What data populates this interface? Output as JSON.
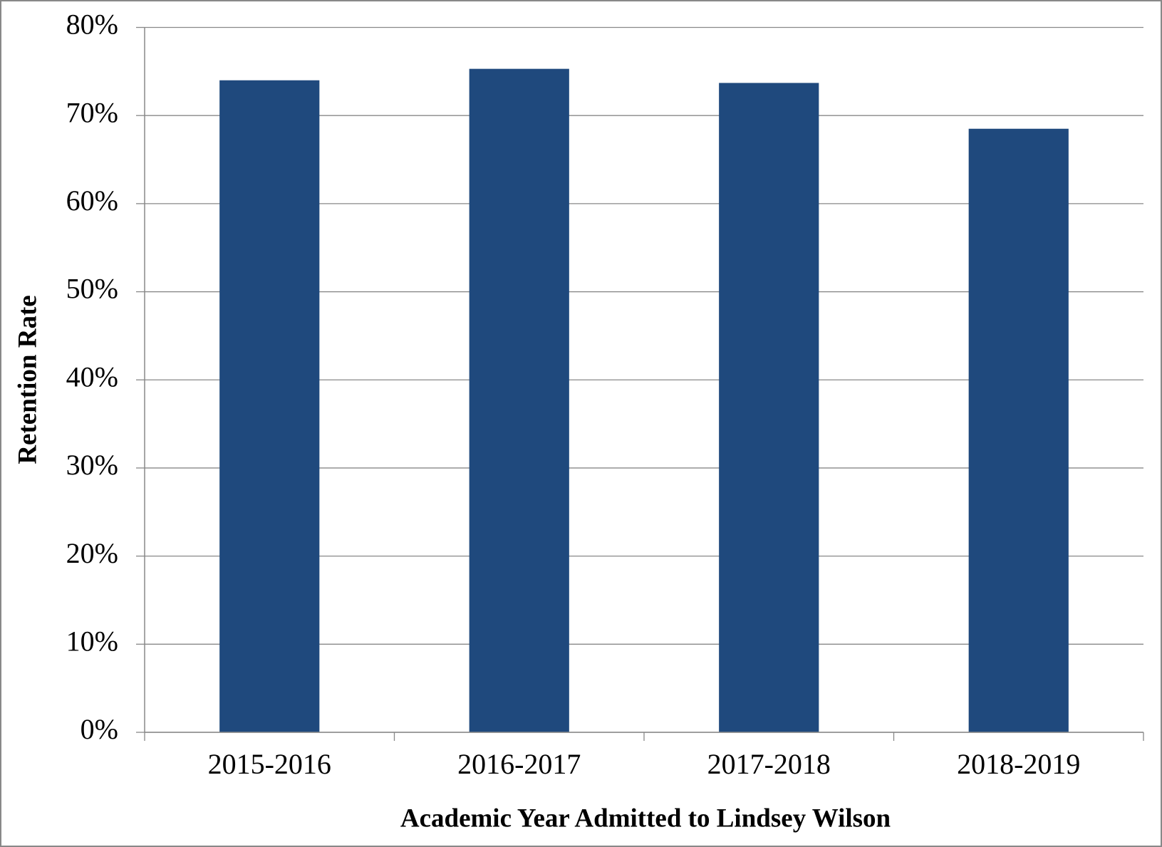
{
  "chart_data": {
    "type": "bar",
    "x_label": "Academic Year Admitted to Lindsey Wilson",
    "y_label": "Retention Rate",
    "categories": [
      "2015-2016",
      "2016-2017",
      "2017-2018",
      "2018-2019"
    ],
    "values": [
      74.0,
      75.3,
      73.7,
      68.5
    ],
    "color": "#1f497d",
    "ylim": [
      0,
      80
    ],
    "yticks": [
      {
        "value": 0,
        "label": "0%"
      },
      {
        "value": 10,
        "label": "10%"
      },
      {
        "value": 20,
        "label": "20%"
      },
      {
        "value": 30,
        "label": "30%"
      },
      {
        "value": 40,
        "label": "40%"
      },
      {
        "value": 50,
        "label": "50%"
      },
      {
        "value": 60,
        "label": "60%"
      },
      {
        "value": 70,
        "label": "70%"
      },
      {
        "value": 80,
        "label": "80%"
      }
    ],
    "grid": true
  }
}
